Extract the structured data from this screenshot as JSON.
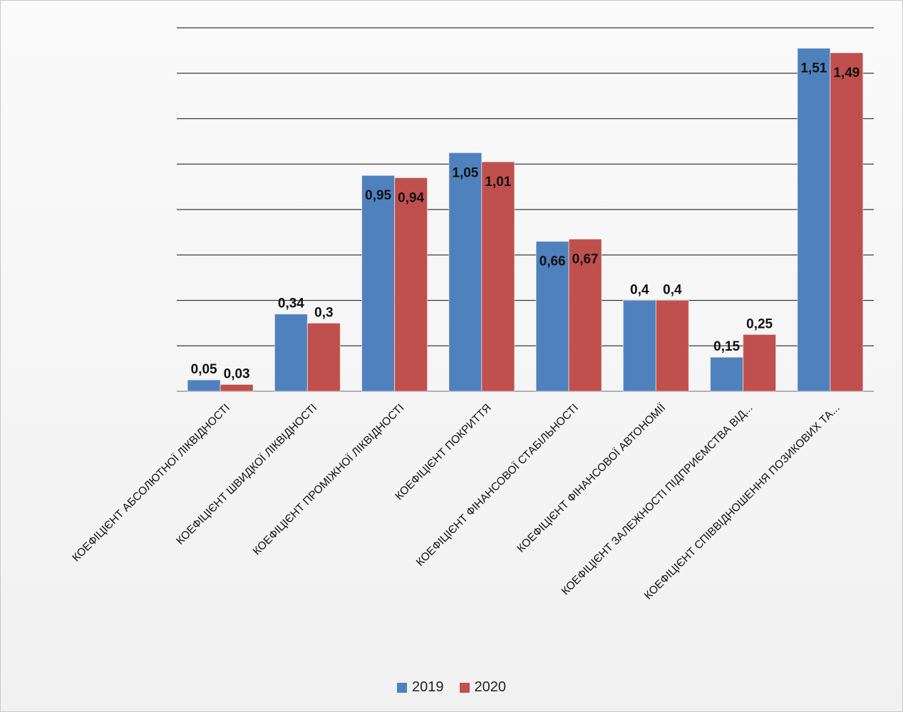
{
  "chart_data": {
    "type": "bar",
    "categories": [
      "КОЕФІЦІЄНТ АБСОЛЮТНОЇ ЛІКВІДНОСТІ",
      "КОЕФІЦІЄНТ ШВИДКОЇ ЛІКВІДНОСТІ",
      "КОЕФІЦІЄНТ ПРОМІЖНОЇ ЛІКВІДНОСТІ",
      "КОЕФІЦІЄНТ ПОКРИТТЯ",
      "КОЕФІЦІЄНТ ФІНАНСОВОЇ СТАБІЛЬНОСТІ",
      "КОЕФІЦІЄНТ ФІНАНСОВОЇ АВТОНОМІЇ",
      "КОЕФІЦІЄНТ ЗАЛЕЖНОСТІ ПІДПРИЄМСТВА ВІД...",
      "КОЕФІЦІЄНТ СПІВВІДНОШЕННЯ ПОЗИКОВИХ ТА..."
    ],
    "series": [
      {
        "name": "2019",
        "color": "#4f81bd",
        "values": [
          0.05,
          0.34,
          0.95,
          1.05,
          0.66,
          0.4,
          0.15,
          1.51
        ],
        "labels": [
          "0,05",
          "0,34",
          "0,95",
          "1,05",
          "0,66",
          "0,4",
          "0,15",
          "1,51"
        ]
      },
      {
        "name": "2020",
        "color": "#c0504d",
        "values": [
          0.03,
          0.3,
          0.94,
          1.01,
          0.67,
          0.4,
          0.25,
          1.49
        ],
        "labels": [
          "0,03",
          "0,3",
          "0,94",
          "1,01",
          "0,67",
          "0,4",
          "0,25",
          "1,49"
        ]
      }
    ],
    "ylim": [
      0,
      1.6
    ],
    "grid_step": 0.2,
    "grid": true,
    "legend_position": "bottom",
    "title": "",
    "xlabel": "",
    "ylabel": ""
  }
}
